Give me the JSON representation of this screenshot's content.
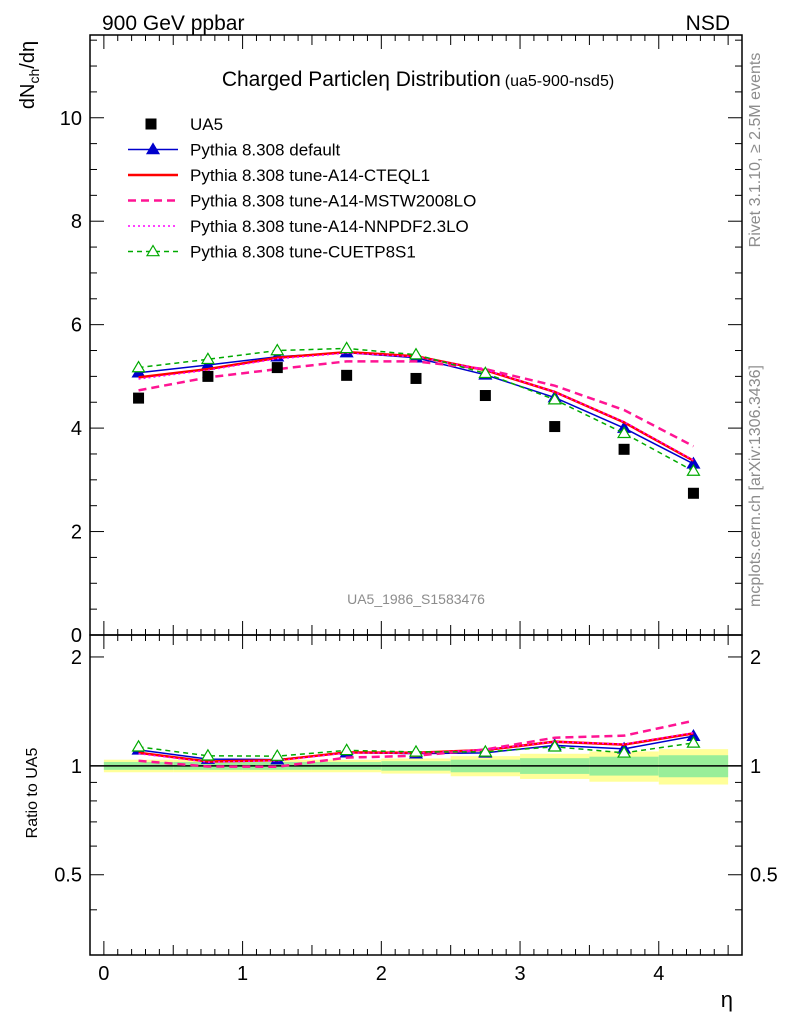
{
  "header": {
    "left": "900 GeV ppbar",
    "right": "NSD"
  },
  "side_text": {
    "rivet": "Rivet 3.1.10, ≥ 2.5M events",
    "mcplots": "mcplots.cern.ch [arXiv:1306.3436]"
  },
  "chart_data": {
    "type": "line",
    "title": "Charged Particleη Distribution",
    "subtitle": "(ua5-900-nsd5)",
    "reference": "UA5_1986_S1583476",
    "xlabel": "η",
    "ylabel": "dN_ch/dη",
    "ratio_ylabel": "Ratio to UA5",
    "xlim": [
      -0.1,
      4.6
    ],
    "ylim": [
      0,
      11.6
    ],
    "ratio_ylim": [
      0.3,
      2.3
    ],
    "x_ticks": [
      "0",
      "1",
      "2",
      "3",
      "4"
    ],
    "y_ticks": [
      "0",
      "2",
      "4",
      "6",
      "8",
      "10"
    ],
    "ratio_ticks": [
      "0.5",
      "1",
      "2"
    ],
    "legend_position": "top-left",
    "x": [
      0.25,
      0.75,
      1.25,
      1.75,
      2.25,
      2.75,
      3.25,
      3.75,
      4.25
    ],
    "data": {
      "name": "UA5",
      "values": [
        4.58,
        5.0,
        5.17,
        5.02,
        4.96,
        4.63,
        4.03,
        3.59,
        2.74
      ],
      "uncertainty_band": [
        0.025,
        0.025,
        0.025,
        0.025,
        0.03,
        0.04,
        0.05,
        0.06,
        0.07
      ]
    },
    "series": [
      {
        "name": "Pythia 8.308 default",
        "color": "#0000cc",
        "style": "solid-triangle",
        "values": [
          5.07,
          5.22,
          5.38,
          5.46,
          5.36,
          5.03,
          4.59,
          4.0,
          3.31
        ]
      },
      {
        "name": "Pythia 8.308 tune-A14-CTEQL1",
        "color": "#ff0000",
        "style": "solid",
        "values": [
          4.98,
          5.14,
          5.36,
          5.47,
          5.39,
          5.12,
          4.7,
          4.11,
          3.37
        ]
      },
      {
        "name": "Pythia 8.308 tune-A14-MSTW2008LO",
        "color": "#ff1493",
        "style": "dashed",
        "values": [
          4.73,
          4.98,
          5.14,
          5.29,
          5.29,
          5.14,
          4.82,
          4.35,
          3.65
        ]
      },
      {
        "name": "Pythia 8.308 tune-A14-NNPDF2.3LO",
        "color": "#ff00ff",
        "style": "dotted",
        "values": [
          4.95,
          5.12,
          5.34,
          5.45,
          5.38,
          5.13,
          4.7,
          4.12,
          3.38
        ]
      },
      {
        "name": "Pythia 8.308 tune-CUETP8S1",
        "color": "#00aa00",
        "style": "dashed-open-triangle",
        "values": [
          5.17,
          5.33,
          5.5,
          5.54,
          5.42,
          5.06,
          4.55,
          3.9,
          3.17
        ]
      }
    ]
  }
}
